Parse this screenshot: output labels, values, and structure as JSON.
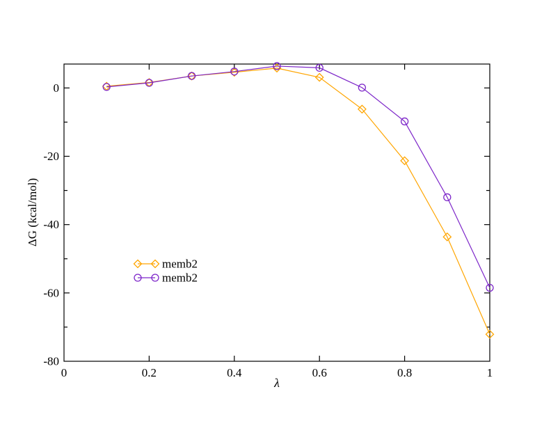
{
  "chart_data": {
    "type": "line",
    "title": "",
    "xlabel": "λ",
    "ylabel": "ΔG (kcal/mol)",
    "xlim": [
      0,
      1
    ],
    "ylim": [
      -80,
      7
    ],
    "grid": false,
    "x_ticks": [
      0.2,
      0.4,
      0.6,
      0.8
    ],
    "x_tick_labels": [
      {
        "value": 0,
        "label": "0"
      },
      {
        "value": 0.2,
        "label": "0.2"
      },
      {
        "value": 0.4,
        "label": "0.4"
      },
      {
        "value": 0.6,
        "label": "0.6"
      },
      {
        "value": 0.8,
        "label": "0.8"
      },
      {
        "value": 1,
        "label": "1"
      }
    ],
    "y_major_ticks": [
      {
        "value": 0,
        "label": "0"
      },
      {
        "value": -20,
        "label": "-20"
      },
      {
        "value": -40,
        "label": "-40"
      },
      {
        "value": -60,
        "label": "-60"
      },
      {
        "value": -80,
        "label": "-80"
      }
    ],
    "y_minor_ticks": [
      -10,
      -30,
      -50,
      -70
    ],
    "x": [
      0.1,
      0.2,
      0.3,
      0.4,
      0.5,
      0.6,
      0.7,
      0.8,
      0.9,
      1.0
    ],
    "series": [
      {
        "name": "memb2",
        "marker": "diamond",
        "color": "#FFA500",
        "values": [
          0.5,
          1.6,
          3.5,
          4.6,
          5.8,
          3.1,
          -6.2,
          -21.3,
          -43.6,
          -72.1
        ]
      },
      {
        "name": "memb2",
        "marker": "circle",
        "color": "#7D26C9",
        "values": [
          0.3,
          1.5,
          3.5,
          4.8,
          6.4,
          5.9,
          0.1,
          -9.8,
          -32.0,
          -58.5
        ]
      }
    ],
    "legend": {
      "position": "inside-left-middle",
      "entries": [
        "memb2",
        "memb2"
      ]
    },
    "axis_color": "#000000",
    "background_color": "#ffffff"
  }
}
